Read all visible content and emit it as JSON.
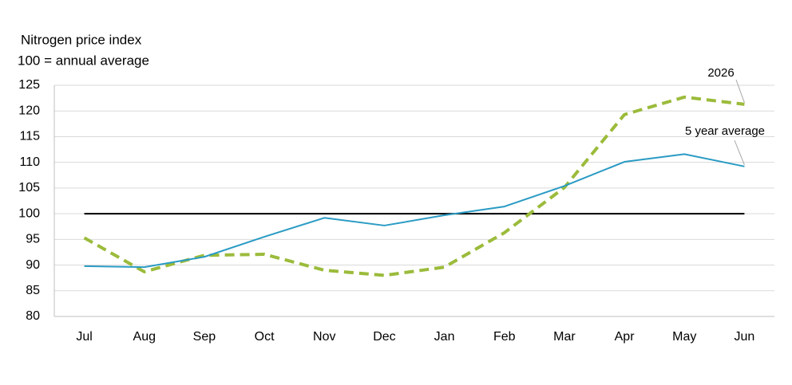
{
  "chart_data": {
    "type": "line",
    "title": "Nitrogen price index",
    "subtitle": "100 = annual average",
    "categories": [
      "Jul",
      "Aug",
      "Sep",
      "Oct",
      "Nov",
      "Dec",
      "Jan",
      "Feb",
      "Mar",
      "Apr",
      "May",
      "Jun"
    ],
    "series": [
      {
        "name": "2026",
        "color": "#9bbb3b",
        "dashed": true,
        "values": [
          95.3,
          88.7,
          91.9,
          92.1,
          89.0,
          88.0,
          89.6,
          96.3,
          105.1,
          119.3,
          122.7,
          121.3
        ]
      },
      {
        "name": "5 year average",
        "color": "#2a9bc4",
        "dashed": false,
        "values": [
          89.8,
          89.6,
          91.6,
          95.5,
          99.2,
          97.7,
          99.7,
          101.4,
          105.4,
          110.1,
          111.6,
          109.2
        ]
      }
    ],
    "reference_line": 100,
    "ylim": [
      80,
      125
    ],
    "yticks": [
      80,
      85,
      90,
      95,
      100,
      105,
      110,
      115,
      120,
      125
    ],
    "grid": true
  }
}
